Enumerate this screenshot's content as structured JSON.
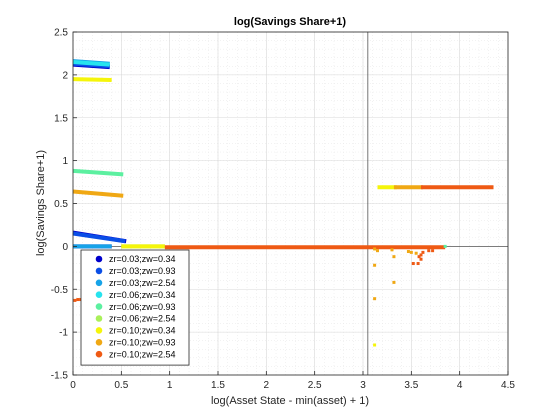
{
  "chart_data": {
    "type": "scatter",
    "title": "log(Savings Share+1)",
    "xlabel": "log(Asset State - min(asset) + 1)",
    "ylabel": "log(Savings Share+1)",
    "xlim": [
      0,
      4.5
    ],
    "ylim": [
      -1.5,
      2.5
    ],
    "x_ticks": [
      0,
      0.5,
      1,
      1.5,
      2,
      2.5,
      3,
      3.5,
      4,
      4.5
    ],
    "x_tick_labels": [
      "0",
      "0.5",
      "1",
      "1.5",
      "2",
      "2.5",
      "3",
      "3.5",
      "4",
      "4.5"
    ],
    "y_ticks": [
      -1.5,
      -1,
      -0.5,
      0,
      0.5,
      1,
      1.5,
      2,
      2.5
    ],
    "y_tick_labels": [
      "-1.5",
      "-1",
      "-0.5",
      "0",
      "0.5",
      "1",
      "1.5",
      "2",
      "2.5"
    ],
    "grid": true,
    "minor_grid": true,
    "reference_lines": {
      "horizontal_y": 0,
      "vertical_x": 3.05
    },
    "legend_position": "bottom-left",
    "series": [
      {
        "name": "zr=0.03;zw=0.34",
        "color": "#0000cc",
        "segments": [
          [
            [
              0,
              2.12
            ],
            [
              0.38,
              2.09
            ]
          ],
          [
            [
              0,
              0.16
            ],
            [
              0.55,
              0.06
            ]
          ],
          [
            [
              0,
              0
            ],
            [
              0.4,
              0
            ]
          ]
        ]
      },
      {
        "name": "zr=0.03;zw=0.93",
        "color": "#0a4ee6",
        "segments": [
          [
            [
              0,
              2.13
            ],
            [
              0.38,
              2.1
            ]
          ],
          [
            [
              0,
              0.15
            ],
            [
              0.54,
              0.06
            ]
          ]
        ]
      },
      {
        "name": "zr=0.03;zw=2.54",
        "color": "#16a3e8",
        "segments": [
          [
            [
              0,
              2.16
            ],
            [
              0.38,
              2.13
            ]
          ],
          [
            [
              0,
              0
            ],
            [
              0.4,
              0
            ]
          ]
        ]
      },
      {
        "name": "zr=0.06;zw=0.34",
        "color": "#27e3ee",
        "segments": [
          [
            [
              0,
              2.15
            ],
            [
              0.38,
              2.12
            ]
          ]
        ]
      },
      {
        "name": "zr=0.06;zw=0.93",
        "color": "#5cf0a0",
        "segments": [
          [
            [
              0,
              0.88
            ],
            [
              0.52,
              0.84
            ]
          ]
        ]
      },
      {
        "name": "zr=0.06;zw=2.54",
        "color": "#aaf05a",
        "segments": [
          [
            [
              0.5,
              0
            ],
            [
              0.95,
              0
            ]
          ]
        ]
      },
      {
        "name": "zr=0.10;zw=0.34",
        "color": "#f5f50a",
        "segments": [
          [
            [
              0,
              1.95
            ],
            [
              0.4,
              1.94
            ]
          ],
          [
            [
              3.15,
              0.69
            ],
            [
              3.35,
              0.69
            ]
          ],
          [
            [
              0.5,
              0
            ],
            [
              0.95,
              0
            ]
          ]
        ]
      },
      {
        "name": "zr=0.10;zw=0.93",
        "color": "#f0a814",
        "segments": [
          [
            [
              0,
              0.64
            ],
            [
              0.52,
              0.59
            ]
          ],
          [
            [
              3.32,
              0.69
            ],
            [
              3.62,
              0.69
            ]
          ]
        ]
      },
      {
        "name": "zr=0.10;zw=2.54",
        "color": "#ef5a14",
        "segments": [
          [
            [
              3.6,
              0.69
            ],
            [
              4.35,
              0.69
            ]
          ],
          [
            [
              0.95,
              -0.01
            ],
            [
              3.85,
              -0.01
            ]
          ]
        ]
      }
    ],
    "scatter_points": [
      {
        "x": 0.02,
        "y": -0.63,
        "color": "#ef5a14"
      },
      {
        "x": 0.05,
        "y": -0.62,
        "color": "#ef5a14"
      },
      {
        "x": 0.08,
        "y": -0.62,
        "color": "#ef5a14"
      },
      {
        "x": 3.12,
        "y": -0.03,
        "color": "#f0a814"
      },
      {
        "x": 3.15,
        "y": -0.05,
        "color": "#f0a814"
      },
      {
        "x": 3.3,
        "y": -0.04,
        "color": "#f0a814"
      },
      {
        "x": 3.32,
        "y": -0.12,
        "color": "#f0a814"
      },
      {
        "x": 3.47,
        "y": -0.06,
        "color": "#f0a814"
      },
      {
        "x": 3.5,
        "y": -0.07,
        "color": "#f0a814"
      },
      {
        "x": 3.55,
        "y": -0.08,
        "color": "#f0a814"
      },
      {
        "x": 3.58,
        "y": -0.12,
        "color": "#ef5a14"
      },
      {
        "x": 3.6,
        "y": -0.1,
        "color": "#ef5a14"
      },
      {
        "x": 3.62,
        "y": -0.07,
        "color": "#ef5a14"
      },
      {
        "x": 3.6,
        "y": -0.15,
        "color": "#ef5a14"
      },
      {
        "x": 3.52,
        "y": -0.2,
        "color": "#ef5a14"
      },
      {
        "x": 3.57,
        "y": -0.2,
        "color": "#ef5a14"
      },
      {
        "x": 3.68,
        "y": -0.05,
        "color": "#ef5a14"
      },
      {
        "x": 3.72,
        "y": -0.05,
        "color": "#ef5a14"
      },
      {
        "x": 3.83,
        "y": -0.01,
        "color": "#ef5a14"
      },
      {
        "x": 3.12,
        "y": -0.22,
        "color": "#f0a814"
      },
      {
        "x": 3.32,
        "y": -0.42,
        "color": "#f0a814"
      },
      {
        "x": 3.12,
        "y": -0.61,
        "color": "#f0a814"
      },
      {
        "x": 3.12,
        "y": -1.15,
        "color": "#f5f50a"
      },
      {
        "x": 3.85,
        "y": 0.0,
        "color": "#5cf0a0"
      }
    ]
  }
}
